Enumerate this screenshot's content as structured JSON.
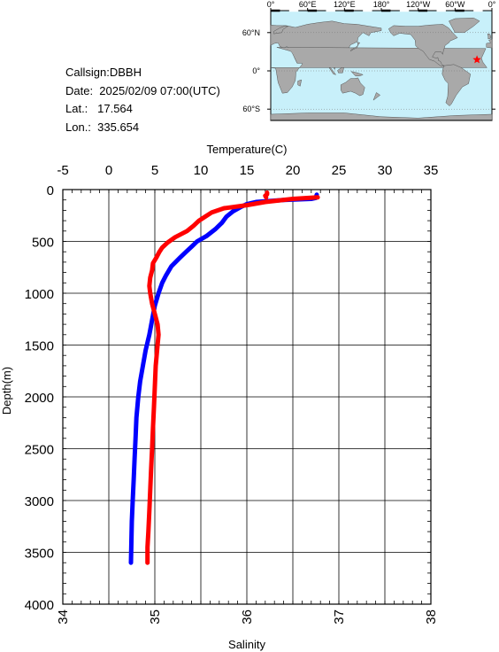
{
  "info": {
    "callsign": "Callsign:DBBH",
    "date": "Date:  2025/02/09 07:00(UTC)",
    "lat": "Lat.:   17.564",
    "lon": "Lon.:  335.654"
  },
  "map": {
    "top_labels": [
      "0°",
      "60°E",
      "120°E",
      "180°",
      "120°W",
      "60°W",
      "0°"
    ],
    "left_labels": [
      "60°N",
      "0°",
      "60°S"
    ],
    "ocean_color": "#c8f0fa",
    "land_color": "#a9a9a9",
    "marker_color": "#ff0000",
    "station": {
      "lon": 335.654,
      "lat": 17.564
    }
  },
  "chart_data": {
    "type": "line",
    "title": "",
    "xlabel_top": "Temperature(C)",
    "xlabel_bottom": "Salinity",
    "ylabel": "Depth(m)",
    "temp_lim": [
      -5,
      35
    ],
    "temp_ticks": [
      "-5",
      "0",
      "5",
      "10",
      "15",
      "20",
      "25",
      "30",
      "35"
    ],
    "sal_lim": [
      34,
      38
    ],
    "sal_ticks": [
      "34",
      "35",
      "36",
      "37",
      "38"
    ],
    "depth_lim": [
      0,
      4000
    ],
    "depth_ticks": [
      "0",
      "500",
      "1000",
      "1500",
      "2000",
      "2500",
      "3000",
      "3500",
      "4000"
    ],
    "grid": true,
    "series": [
      {
        "color": "#0000ff",
        "axis": "temperature",
        "points": [
          [
            22.6,
            50
          ],
          [
            22.5,
            80
          ],
          [
            22.0,
            90
          ],
          [
            19.0,
            100
          ],
          [
            16.0,
            120
          ],
          [
            15.0,
            140
          ],
          [
            14.3,
            170
          ],
          [
            13.5,
            210
          ],
          [
            12.8,
            260
          ],
          [
            12.3,
            320
          ],
          [
            11.6,
            380
          ],
          [
            10.6,
            450
          ],
          [
            9.6,
            500
          ],
          [
            9.0,
            550
          ],
          [
            8.4,
            600
          ],
          [
            7.7,
            660
          ],
          [
            6.8,
            740
          ],
          [
            6.2,
            830
          ],
          [
            5.8,
            900
          ],
          [
            5.4,
            1000
          ],
          [
            5.0,
            1120
          ],
          [
            4.7,
            1260
          ],
          [
            4.4,
            1400
          ],
          [
            4.0,
            1550
          ],
          [
            3.7,
            1700
          ],
          [
            3.4,
            1850
          ],
          [
            3.2,
            2000
          ],
          [
            3.0,
            2200
          ],
          [
            2.9,
            2400
          ],
          [
            2.8,
            2600
          ],
          [
            2.7,
            2800
          ],
          [
            2.6,
            3000
          ],
          [
            2.5,
            3200
          ],
          [
            2.45,
            3400
          ],
          [
            2.4,
            3600
          ]
        ]
      },
      {
        "color": "#ff0000",
        "axis": "salinity",
        "points": [
          [
            36.77,
            75
          ],
          [
            36.5,
            90
          ],
          [
            36.2,
            120
          ],
          [
            36.0,
            150
          ],
          [
            35.75,
            180
          ],
          [
            35.62,
            220
          ],
          [
            35.55,
            260
          ],
          [
            35.48,
            300
          ],
          [
            35.42,
            350
          ],
          [
            35.35,
            400
          ],
          [
            35.22,
            460
          ],
          [
            35.14,
            510
          ],
          [
            35.08,
            560
          ],
          [
            35.05,
            600
          ],
          [
            35.02,
            650
          ],
          [
            34.98,
            710
          ],
          [
            34.97,
            780
          ],
          [
            34.95,
            850
          ],
          [
            34.94,
            930
          ],
          [
            34.95,
            1000
          ],
          [
            34.97,
            1100
          ],
          [
            35.0,
            1200
          ],
          [
            35.03,
            1300
          ],
          [
            35.04,
            1400
          ],
          [
            35.03,
            1500
          ],
          [
            35.01,
            1700
          ],
          [
            35.0,
            1900
          ],
          [
            34.99,
            2100
          ],
          [
            34.98,
            2300
          ],
          [
            34.97,
            2500
          ],
          [
            34.96,
            2700
          ],
          [
            34.95,
            2900
          ],
          [
            34.94,
            3100
          ],
          [
            34.93,
            3300
          ],
          [
            34.92,
            3450
          ],
          [
            34.92,
            3600
          ]
        ]
      },
      {
        "color": "#ff0000",
        "axis": "salinity",
        "points": [
          [
            36.22,
            30
          ],
          [
            36.22,
            45
          ],
          [
            36.2,
            60
          ],
          [
            36.21,
            75
          ]
        ]
      }
    ]
  }
}
